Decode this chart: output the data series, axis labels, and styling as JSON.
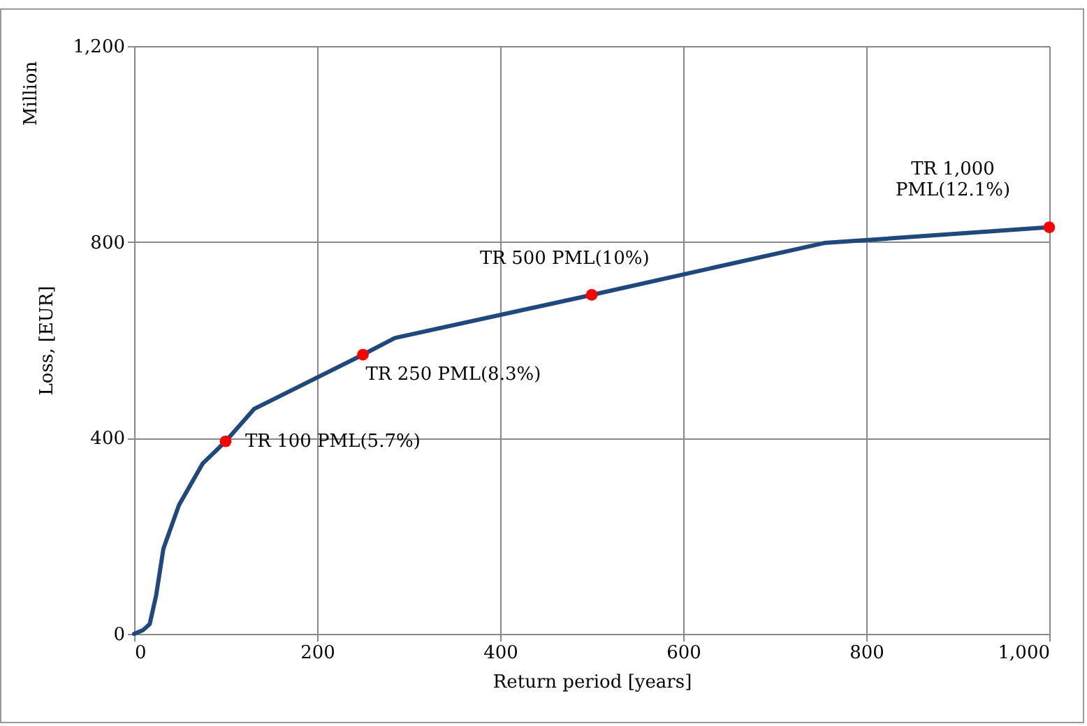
{
  "chart_data": {
    "type": "line",
    "xlabel": "Return period [years]",
    "ylabel": "Loss, [EUR]",
    "xlim": [
      0,
      1000
    ],
    "ylim": [
      0,
      1200
    ],
    "xticks": [
      0,
      200,
      400,
      600,
      800,
      {
        "value": 1000,
        "label": "1,000"
      }
    ],
    "yticks": [
      0,
      400,
      800,
      {
        "value": 1200,
        "label": "1,200"
      }
    ],
    "grid": true,
    "series": [
      {
        "type": "line",
        "color": "#1f497d",
        "marker": "none",
        "x": [
          0,
          10,
          17,
          24,
          32,
          49,
          75,
          100,
          131,
          250,
          285,
          500,
          754,
          1000
        ],
        "values": [
          0,
          8,
          20,
          78,
          174,
          263,
          348,
          393,
          459,
          570,
          604,
          692,
          798,
          830
        ]
      },
      {
        "type": "scatter",
        "color": "#ff0000",
        "marker": "circle",
        "x": [
          100,
          250,
          500,
          1000
        ],
        "values": [
          393,
          570,
          692,
          830
        ]
      }
    ],
    "annotations": [
      "Million",
      {
        "text": "TR 100 PML(5.7%)",
        "x": 100,
        "y": 393
      },
      {
        "text": "TR 250 PML(8.3%)",
        "x": 250,
        "y": 570
      },
      {
        "text": "TR 500 PML(10%)",
        "x": 500,
        "y": 692
      },
      {
        "text": "TR 1,000\nPML(12.1%)",
        "x": 1000,
        "y": 830
      }
    ]
  }
}
